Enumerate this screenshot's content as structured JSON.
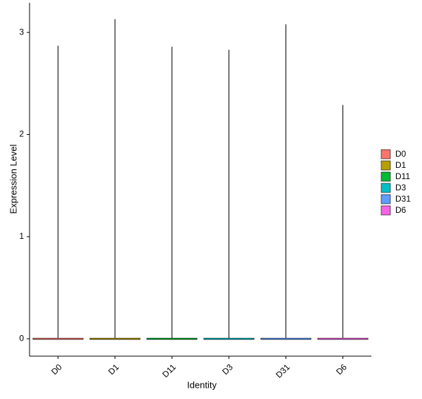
{
  "chart_data": {
    "type": "violin",
    "x_label": "Identity",
    "y_label": "Expression Level",
    "categories": [
      "D0",
      "D1",
      "D11",
      "D3",
      "D31",
      "D6"
    ],
    "colors": [
      "#F8766D",
      "#B79F00",
      "#00BA38",
      "#00BFC4",
      "#619CFF",
      "#F564E3"
    ],
    "max": [
      2.87,
      3.13,
      2.86,
      2.83,
      3.08,
      2.29
    ],
    "ylim": [
      -0.17,
      3.29
    ],
    "yticks": [
      0,
      1,
      2,
      3
    ],
    "grid": false
  }
}
